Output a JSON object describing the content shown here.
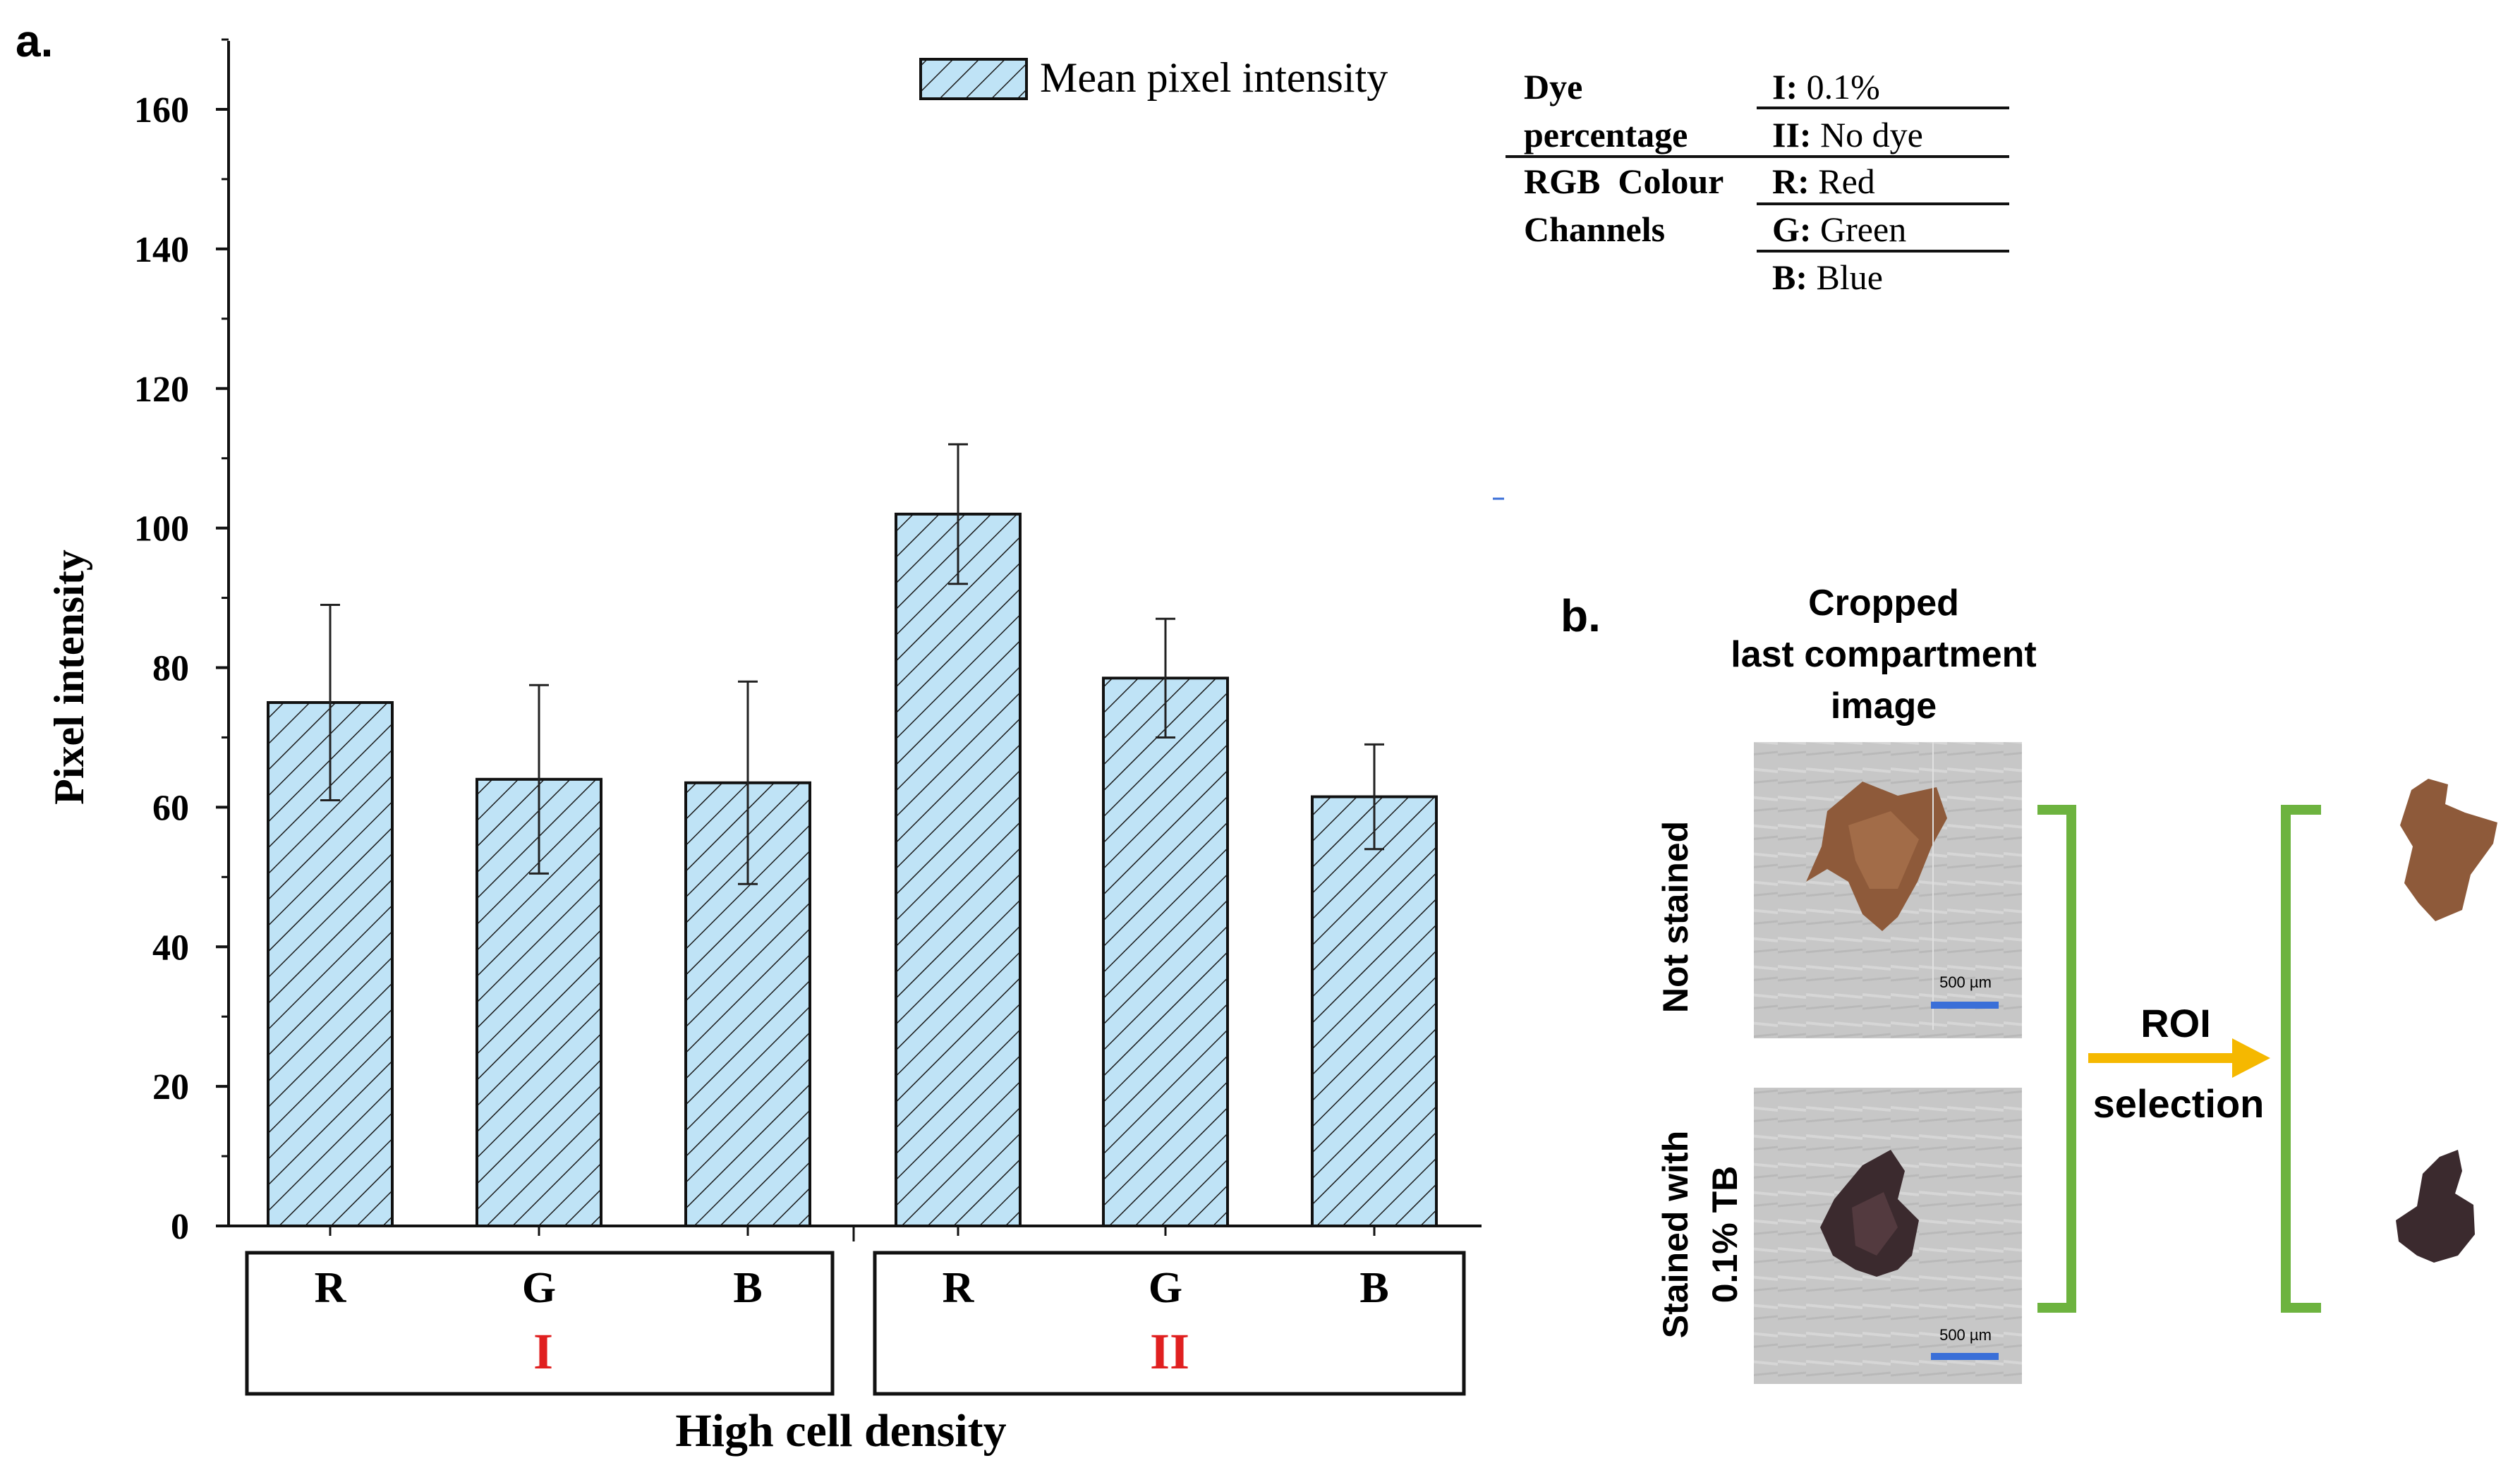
{
  "panel_a_label": "a.",
  "panel_b_label": "b.",
  "chart_data": {
    "type": "bar",
    "title": "",
    "categories": [
      "R",
      "G",
      "B",
      "R",
      "G",
      "B"
    ],
    "groups": [
      {
        "name": "I",
        "categories": [
          "R",
          "G",
          "B"
        ]
      },
      {
        "name": "II",
        "categories": [
          "R",
          "G",
          "B"
        ]
      }
    ],
    "series": [
      {
        "name": "Mean pixel intensity",
        "values": [
          75,
          64,
          63.5,
          102,
          78.5,
          61.5
        ],
        "error": [
          14,
          13.5,
          14.5,
          10,
          8.5,
          7.5
        ]
      }
    ],
    "xlabel": "High cell density",
    "ylabel": "Pixel intensity",
    "ylim": [
      0,
      170
    ],
    "yticks": [
      0,
      20,
      40,
      60,
      80,
      100,
      120,
      140,
      160
    ],
    "legend": "top-right",
    "bar_color": "#bfe3f6",
    "group_label_color": "#e02020"
  },
  "key_table": {
    "rows": [
      {
        "head": "Dye percentage",
        "entries": [
          {
            "k": "I:",
            "v": "0.1%"
          },
          {
            "k": "II:",
            "v": "No dye"
          }
        ]
      },
      {
        "head": "RGB Colour Channels",
        "entries": [
          {
            "k": "R:",
            "v": "Red"
          },
          {
            "k": "G:",
            "v": "Green"
          },
          {
            "k": "B:",
            "v": "Blue"
          }
        ]
      }
    ]
  },
  "panel_b": {
    "heading": [
      "Cropped",
      "last compartment",
      "image"
    ],
    "row_labels": {
      "top": [
        "Not stained"
      ],
      "bottom": [
        "Stained with",
        "0.1% TB"
      ]
    },
    "scale_bar_text": "500 µm",
    "arrow_label": [
      "ROI",
      "selection"
    ],
    "bracket_color": "#6db33f",
    "arrow_color": "#f5b800",
    "scale_color": "#3a6fd8"
  }
}
